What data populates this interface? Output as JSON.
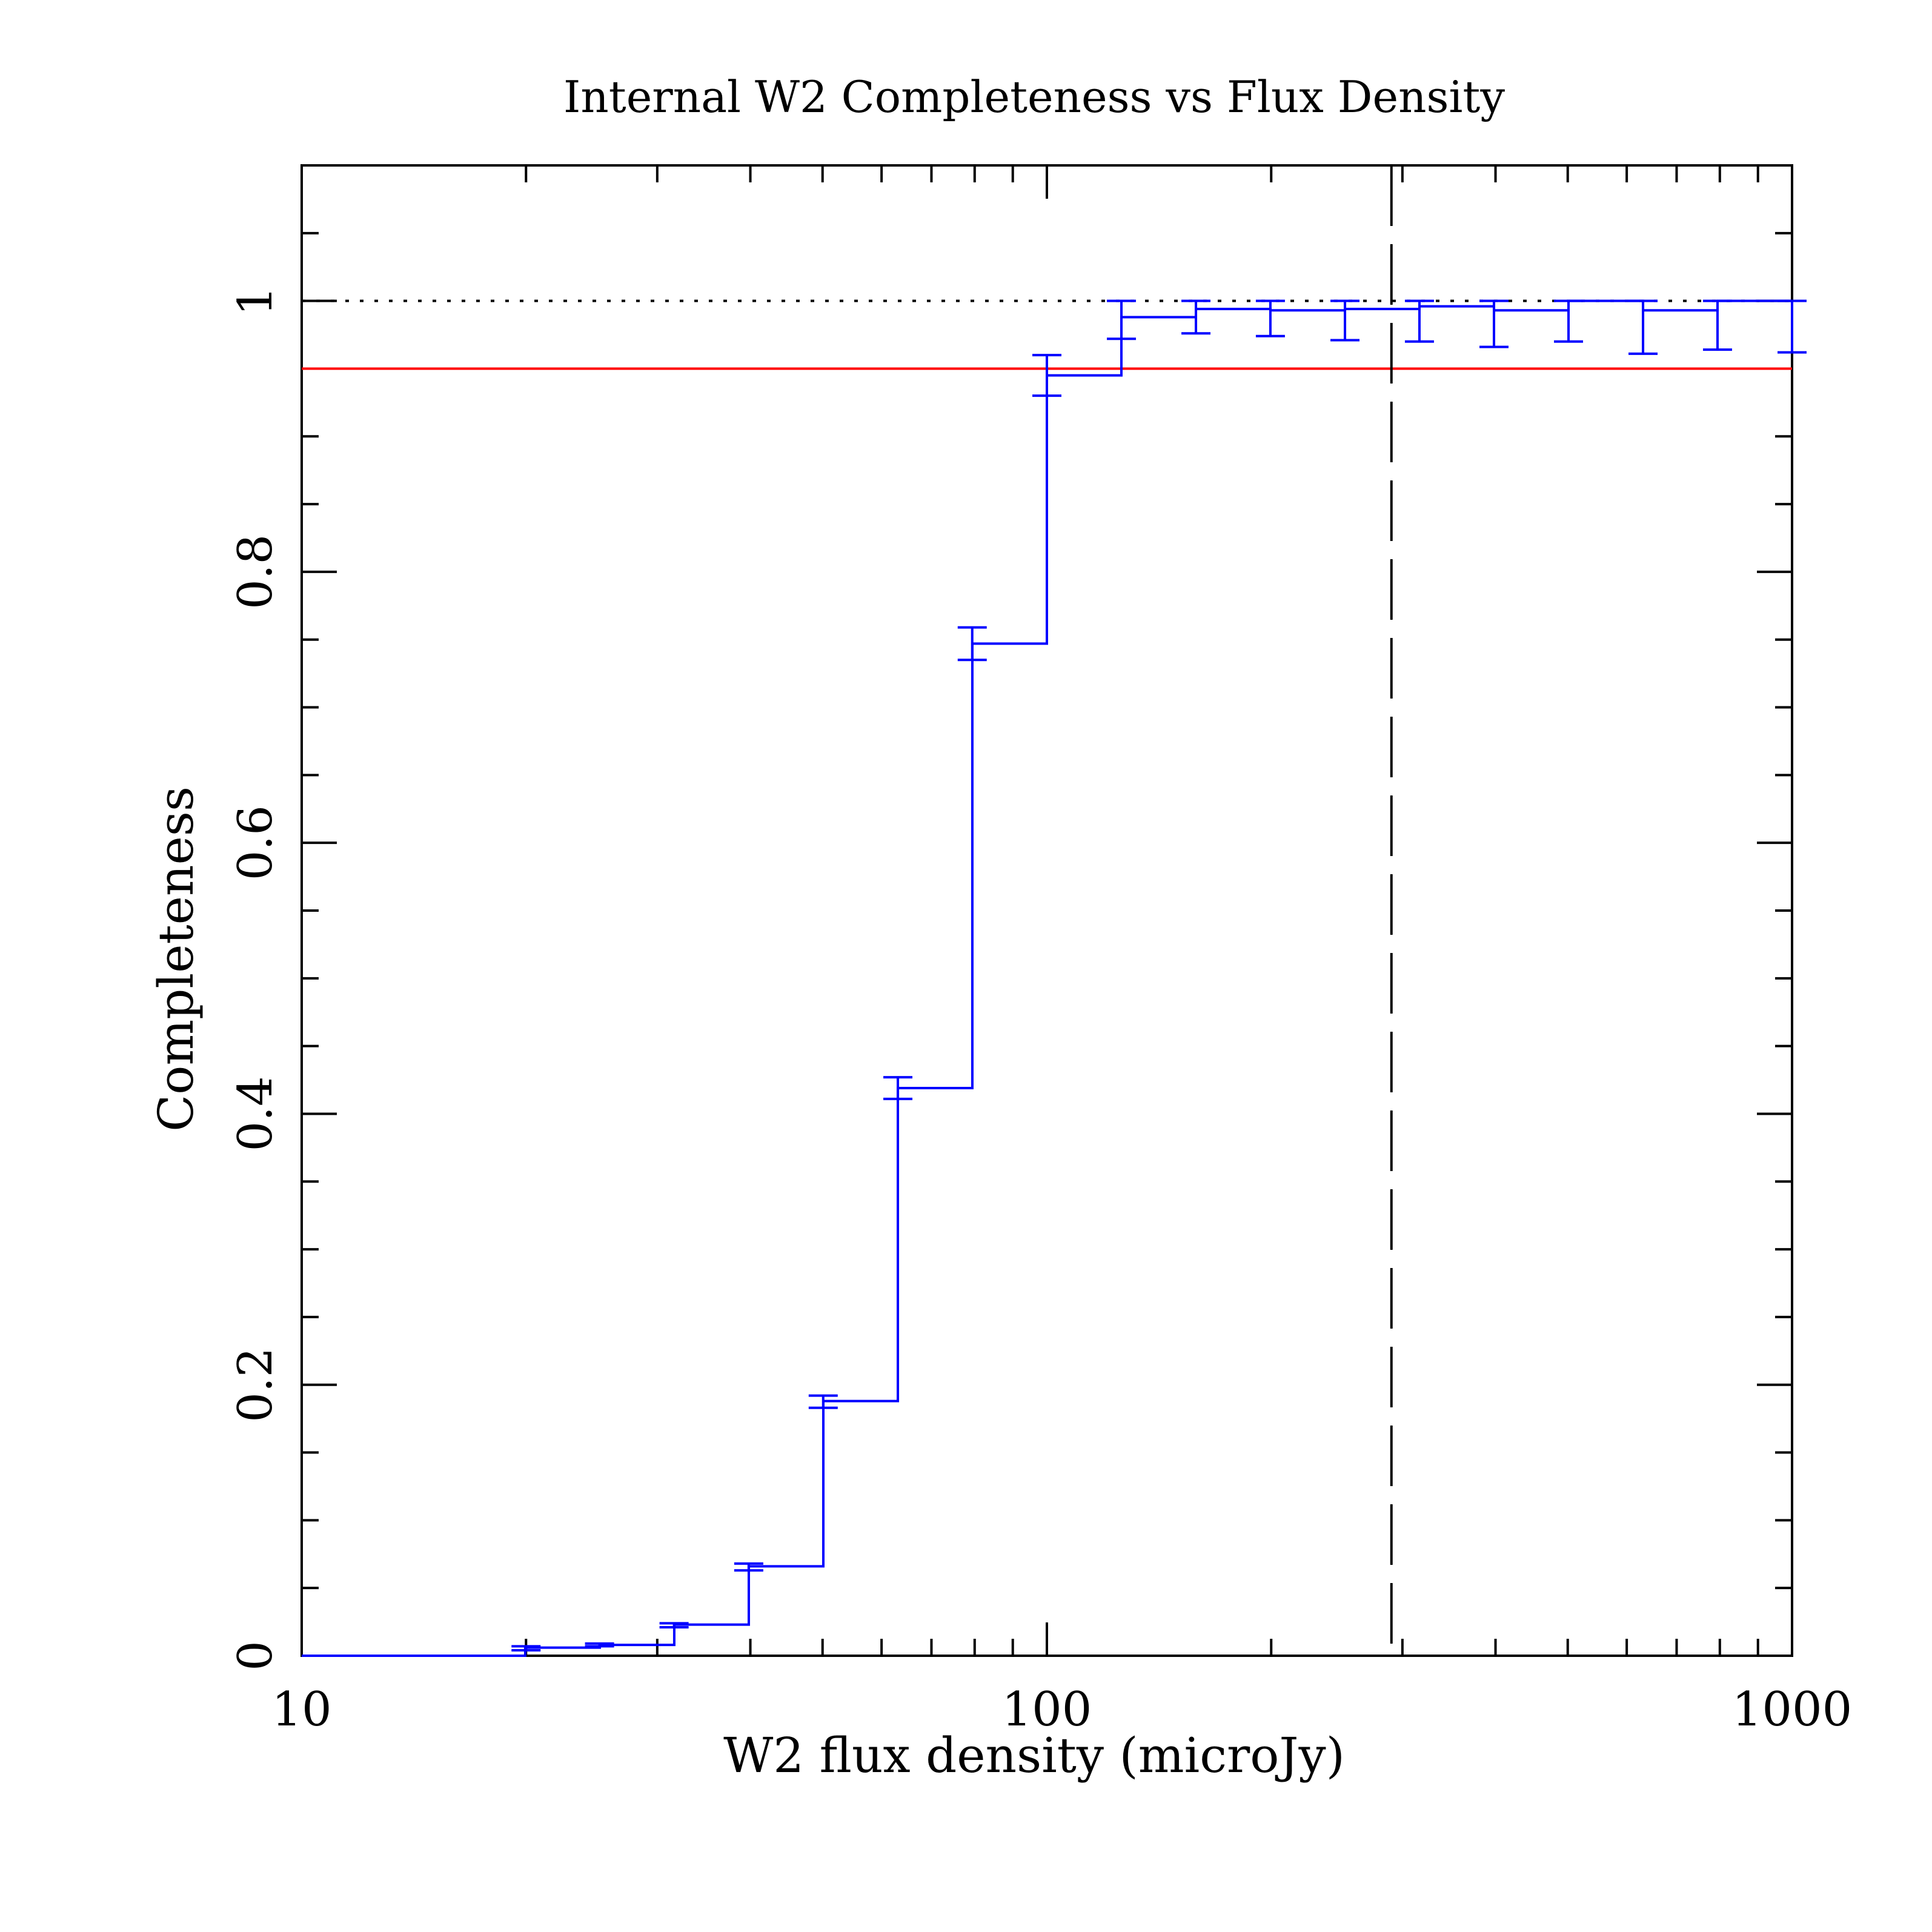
{
  "chart_data": {
    "type": "line",
    "subtype": "step-histogram-with-error-bars",
    "title": "Internal W2 Completeness vs Flux Density",
    "xlabel": "W2 flux density (microJy)",
    "ylabel": "Completeness",
    "x_scale": "log",
    "xlim": [
      10,
      1000
    ],
    "ylim": [
      0,
      1.1
    ],
    "x_tick_labels": [
      "10",
      "100",
      "1000"
    ],
    "x_major_ticks": [
      10,
      100,
      1000
    ],
    "y_tick_labels": [
      "0",
      "0.2",
      "0.4",
      "0.6",
      "0.8",
      "1"
    ],
    "y_major_ticks": [
      0,
      0.2,
      0.4,
      0.6,
      0.8,
      1.0
    ],
    "y_minor_step": 0.05,
    "grid": false,
    "series": [
      {
        "color": "#0000ff",
        "bin_edges": [
          10,
          12.59,
          15.85,
          19.95,
          25.12,
          31.62,
          39.81,
          50.12,
          63.1,
          79.43,
          100,
          125.89,
          158.49,
          199.53,
          251.19,
          316.23,
          398.11,
          501.19,
          630.96,
          794.33,
          1000
        ],
        "values": [
          0,
          0,
          0,
          0.006,
          0.008,
          0.023,
          0.066,
          0.188,
          0.419,
          0.747,
          0.945,
          0.988,
          0.994,
          0.993,
          0.994,
          0.996,
          0.993,
          1.0,
          0.993,
          1.0
        ],
        "error_centers": [
          20.0,
          25.1,
          31.6,
          39.8,
          50.1,
          63.1,
          79.4,
          100.0,
          125.9,
          158.5,
          199.5,
          251.2,
          316.2,
          398.1,
          501.2,
          631.0,
          794.3,
          1000.0
        ],
        "error_low": [
          0.004,
          0.007,
          0.021,
          0.063,
          0.183,
          0.411,
          0.735,
          0.93,
          0.972,
          0.976,
          0.974,
          0.971,
          0.97,
          0.966,
          0.97,
          0.961,
          0.964,
          0.962
        ],
        "error_high": [
          0.007,
          0.009,
          0.024,
          0.068,
          0.192,
          0.427,
          0.759,
          0.96,
          1.0,
          1.0,
          1.0,
          1.0,
          1.0,
          1.0,
          1.0,
          1.0,
          1.0,
          1.0
        ]
      }
    ],
    "reference_lines": [
      {
        "orientation": "horizontal",
        "value": 0.95,
        "color": "#ff0000",
        "style": "solid"
      },
      {
        "orientation": "horizontal",
        "value": 1.0,
        "color": "#000000",
        "style": "dotted"
      },
      {
        "orientation": "vertical",
        "value": 290,
        "color": "#000000",
        "style": "dashed"
      }
    ]
  }
}
